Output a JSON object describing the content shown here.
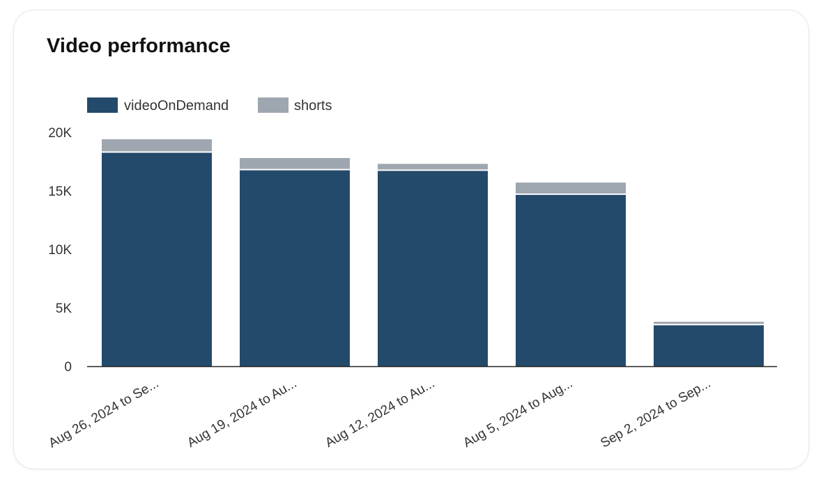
{
  "card": {
    "title": "Video performance"
  },
  "colors": {
    "videoOnDemand": "#244a6b",
    "shorts": "#9ea6af",
    "axis": "#222222",
    "text": "#333333"
  },
  "chart_data": {
    "type": "bar",
    "stacked": true,
    "title": "Video performance",
    "xlabel": "",
    "ylabel": "",
    "ylim": [
      0,
      20000
    ],
    "yticks": [
      0,
      5000,
      10000,
      15000,
      20000
    ],
    "ytick_labels": [
      "0",
      "5K",
      "10K",
      "15K",
      "20K"
    ],
    "categories": [
      "Aug 26, 2024 to Se...",
      "Aug 19, 2024 to Au...",
      "Aug 12, 2024 to Au...",
      "Aug 5, 2024 to Aug...",
      "Sep 2, 2024 to Sep..."
    ],
    "series": [
      {
        "name": "videoOnDemand",
        "values": [
          18250,
          16750,
          16700,
          14650,
          3500
        ]
      },
      {
        "name": "shorts",
        "values": [
          1150,
          1050,
          600,
          1050,
          300
        ]
      }
    ],
    "legend": "top-left",
    "grid": false
  }
}
